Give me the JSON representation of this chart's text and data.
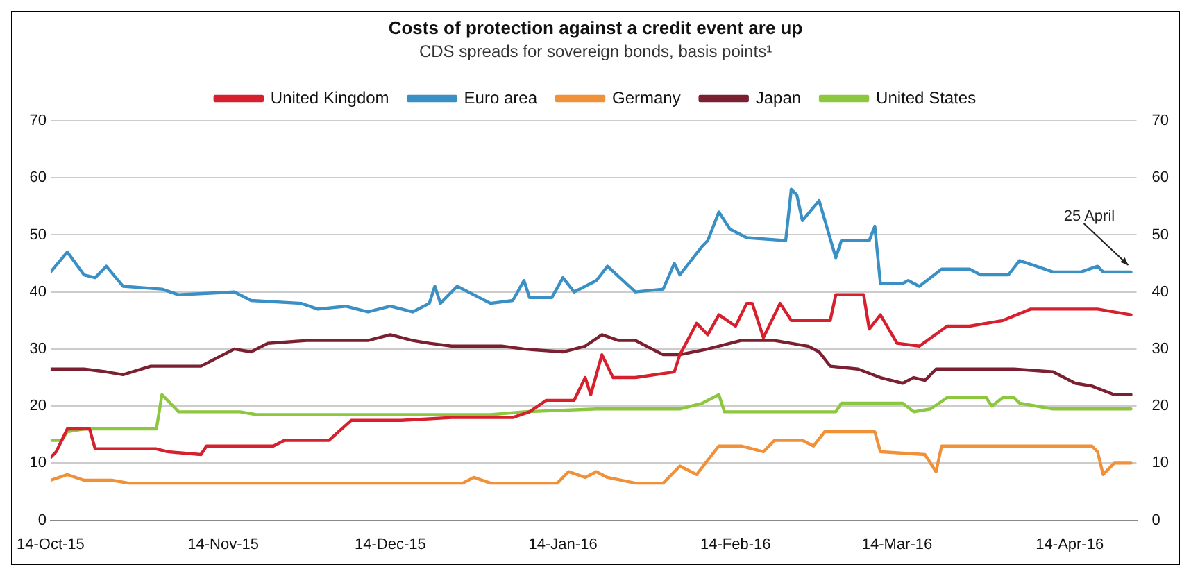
{
  "chart_data": {
    "type": "line",
    "title": "Costs of protection against a credit event are up",
    "subtitle": "CDS spreads for sovereign bonds, basis points¹",
    "xlim": [
      "2015-10-14",
      "2016-04-26"
    ],
    "xticks": [
      {
        "value": "2015-10-14",
        "label": "14-Oct-15"
      },
      {
        "value": "2015-11-14",
        "label": "14-Nov-15"
      },
      {
        "value": "2015-12-14",
        "label": "14-Dec-15"
      },
      {
        "value": "2016-01-14",
        "label": "14-Jan-16"
      },
      {
        "value": "2016-02-14",
        "label": "14-Feb-16"
      },
      {
        "value": "2016-03-14",
        "label": "14-Mar-16"
      },
      {
        "value": "2016-04-14",
        "label": "14-Apr-16"
      }
    ],
    "ylim": [
      0,
      70
    ],
    "yticks": [
      0,
      10,
      20,
      30,
      40,
      50,
      60,
      70
    ],
    "y2lim": [
      0,
      70
    ],
    "y2ticks": [
      0,
      10,
      20,
      30,
      40,
      50,
      60,
      70
    ],
    "grid": "y",
    "legend": "top",
    "marker": "none",
    "line_style": "solid",
    "annotations": [
      {
        "text": "25 April",
        "x": "2016-04-25",
        "y": 43.5
      }
    ],
    "series": [
      {
        "name": "United Kingdom",
        "color": "#d7202e",
        "x": [
          "2015-10-14",
          "2015-10-15",
          "2015-10-17",
          "2015-10-21",
          "2015-10-22",
          "2015-11-02",
          "2015-11-04",
          "2015-11-10",
          "2015-11-11",
          "2015-11-23",
          "2015-11-25",
          "2015-12-03",
          "2015-12-07",
          "2015-12-16",
          "2015-12-25",
          "2016-01-05",
          "2016-01-08",
          "2016-01-11",
          "2016-01-14",
          "2016-01-16",
          "2016-01-18",
          "2016-01-19",
          "2016-01-21",
          "2016-01-23",
          "2016-01-27",
          "2016-02-03",
          "2016-02-04",
          "2016-02-07",
          "2016-02-09",
          "2016-02-11",
          "2016-02-14",
          "2016-02-16",
          "2016-02-17",
          "2016-02-19",
          "2016-02-22",
          "2016-02-24",
          "2016-03-02",
          "2016-03-03",
          "2016-03-08",
          "2016-03-09",
          "2016-03-11",
          "2016-03-14",
          "2016-03-18",
          "2016-03-23",
          "2016-03-27",
          "2016-04-02",
          "2016-04-07",
          "2016-04-19",
          "2016-04-25"
        ],
        "values": [
          11,
          12,
          16,
          16,
          12.5,
          12.5,
          12,
          11.5,
          13,
          13,
          14,
          14,
          17.5,
          17.5,
          18,
          18,
          19,
          21,
          21,
          21,
          25,
          22,
          29,
          25,
          25,
          26,
          29,
          34.5,
          32.5,
          36,
          34,
          38,
          38,
          32,
          38,
          35,
          35,
          39.5,
          39.5,
          33.5,
          36,
          31,
          30.5,
          34,
          34,
          35,
          37,
          37,
          36
        ]
      },
      {
        "name": "Euro area",
        "color": "#3a90c4",
        "x": [
          "2015-10-14",
          "2015-10-17",
          "2015-10-20",
          "2015-10-22",
          "2015-10-24",
          "2015-10-27",
          "2015-11-03",
          "2015-11-06",
          "2015-11-16",
          "2015-11-19",
          "2015-11-28",
          "2015-12-01",
          "2015-12-06",
          "2015-12-10",
          "2015-12-14",
          "2015-12-18",
          "2015-12-21",
          "2015-12-22",
          "2015-12-23",
          "2015-12-26",
          "2016-01-01",
          "2016-01-05",
          "2016-01-07",
          "2016-01-08",
          "2016-01-12",
          "2016-01-14",
          "2016-01-16",
          "2016-01-20",
          "2016-01-22",
          "2016-01-27",
          "2016-02-01",
          "2016-02-03",
          "2016-02-04",
          "2016-02-08",
          "2016-02-09",
          "2016-02-11",
          "2016-02-13",
          "2016-02-16",
          "2016-02-23",
          "2016-02-24",
          "2016-02-25",
          "2016-02-26",
          "2016-02-29",
          "2016-03-03",
          "2016-03-04",
          "2016-03-09",
          "2016-03-10",
          "2016-03-11",
          "2016-03-15",
          "2016-03-16",
          "2016-03-18",
          "2016-03-22",
          "2016-03-27",
          "2016-03-29",
          "2016-04-03",
          "2016-04-05",
          "2016-04-08",
          "2016-04-11",
          "2016-04-16",
          "2016-04-19",
          "2016-04-20",
          "2016-04-25"
        ],
        "values": [
          43.5,
          47,
          43,
          42.5,
          44.5,
          41,
          40.5,
          39.5,
          40,
          38.5,
          38,
          37,
          37.5,
          36.5,
          37.5,
          36.5,
          38,
          41,
          38,
          41,
          38,
          38.5,
          42,
          39,
          39,
          42.5,
          40,
          42,
          44.5,
          40,
          40.5,
          45,
          43,
          48,
          49,
          54,
          51,
          49.5,
          49,
          58,
          57,
          52.5,
          56,
          46,
          49,
          49,
          51.5,
          41.5,
          41.5,
          42,
          41,
          44,
          44,
          43,
          43,
          45.5,
          44.5,
          43.5,
          43.5,
          44.5,
          43.5,
          43.5
        ]
      },
      {
        "name": "Germany",
        "color": "#f0913a",
        "x": [
          "2015-10-14",
          "2015-10-17",
          "2015-10-20",
          "2015-10-25",
          "2015-10-28",
          "2015-12-27",
          "2015-12-29",
          "2016-01-01",
          "2016-01-13",
          "2016-01-15",
          "2016-01-18",
          "2016-01-20",
          "2016-01-22",
          "2016-01-27",
          "2016-02-01",
          "2016-02-04",
          "2016-02-07",
          "2016-02-11",
          "2016-02-15",
          "2016-02-19",
          "2016-02-21",
          "2016-02-26",
          "2016-02-28",
          "2016-03-01",
          "2016-03-10",
          "2016-03-11",
          "2016-03-19",
          "2016-03-21",
          "2016-03-22",
          "2016-04-18",
          "2016-04-19",
          "2016-04-20",
          "2016-04-22",
          "2016-04-25"
        ],
        "values": [
          7,
          8,
          7,
          7,
          6.5,
          6.5,
          7.5,
          6.5,
          6.5,
          8.5,
          7.5,
          8.5,
          7.5,
          6.5,
          6.5,
          9.5,
          8,
          13,
          13,
          12,
          14,
          14,
          13,
          15.5,
          15.5,
          12,
          11.5,
          8.5,
          13,
          13,
          12,
          8,
          10,
          10
        ]
      },
      {
        "name": "Japan",
        "color": "#7a2030",
        "x": [
          "2015-10-14",
          "2015-10-20",
          "2015-10-24",
          "2015-10-27",
          "2015-11-01",
          "2015-11-10",
          "2015-11-12",
          "2015-11-16",
          "2015-11-19",
          "2015-11-22",
          "2015-11-29",
          "2015-12-10",
          "2015-12-14",
          "2015-12-18",
          "2015-12-21",
          "2015-12-25",
          "2016-01-03",
          "2016-01-07",
          "2016-01-14",
          "2016-01-18",
          "2016-01-21",
          "2016-01-24",
          "2016-01-27",
          "2016-02-01",
          "2016-02-04",
          "2016-02-09",
          "2016-02-15",
          "2016-02-21",
          "2016-02-27",
          "2016-02-29",
          "2016-03-02",
          "2016-03-07",
          "2016-03-11",
          "2016-03-15",
          "2016-03-17",
          "2016-03-19",
          "2016-03-21",
          "2016-03-30",
          "2016-04-04",
          "2016-04-11",
          "2016-04-15",
          "2016-04-18",
          "2016-04-22",
          "2016-04-25"
        ],
        "values": [
          26.5,
          26.5,
          26,
          25.5,
          27,
          27,
          28,
          30,
          29.5,
          31,
          31.5,
          31.5,
          32.5,
          31.5,
          31,
          30.5,
          30.5,
          30,
          29.5,
          30.5,
          32.5,
          31.5,
          31.5,
          29,
          29,
          30,
          31.5,
          31.5,
          30.5,
          29.5,
          27,
          26.5,
          25,
          24,
          25,
          24.5,
          26.5,
          26.5,
          26.5,
          26,
          24,
          23.5,
          22,
          22
        ]
      },
      {
        "name": "United States",
        "color": "#8dc63f",
        "x": [
          "2015-10-14",
          "2015-10-16",
          "2015-10-17",
          "2015-10-20",
          "2015-11-02",
          "2015-11-03",
          "2015-11-06",
          "2015-11-17",
          "2015-11-20",
          "2016-01-01",
          "2016-01-07",
          "2016-01-20",
          "2016-02-04",
          "2016-02-08",
          "2016-02-11",
          "2016-02-12",
          "2016-03-03",
          "2016-03-04",
          "2016-03-15",
          "2016-03-17",
          "2016-03-20",
          "2016-03-23",
          "2016-03-30",
          "2016-03-31",
          "2016-04-02",
          "2016-04-04",
          "2016-04-05",
          "2016-04-11",
          "2016-04-25"
        ],
        "values": [
          14,
          14,
          15.5,
          16,
          16,
          22,
          19,
          19,
          18.5,
          18.5,
          19,
          19.5,
          19.5,
          20.5,
          22,
          19,
          19,
          20.5,
          20.5,
          19,
          19.5,
          21.5,
          21.5,
          20,
          21.5,
          21.5,
          20.5,
          19.5,
          19.5
        ]
      }
    ]
  }
}
